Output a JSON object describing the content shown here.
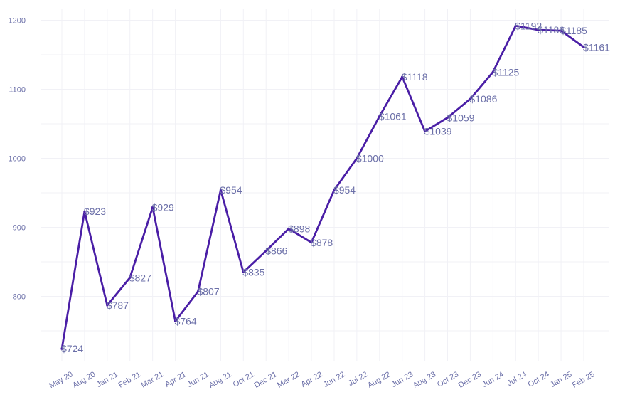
{
  "chart_data": {
    "type": "line",
    "title": "",
    "xlabel": "",
    "ylabel": "",
    "categories": [
      "May 20",
      "Aug 20",
      "Jan 21",
      "Feb 21",
      "Mar 21",
      "Apr 21",
      "Jun 21",
      "Aug 21",
      "Oct 21",
      "Dec 21",
      "Mar 22",
      "Apr 22",
      "Jun 22",
      "Jul 22",
      "Aug 22",
      "Jun 23",
      "Aug 23",
      "Oct 23",
      "Dec 23",
      "Jun 24",
      "Jul 24",
      "Oct 24",
      "Jan 25",
      "Feb 25"
    ],
    "values": [
      724,
      923,
      787,
      827,
      929,
      764,
      807,
      954,
      835,
      866,
      898,
      878,
      954,
      1000,
      1061,
      1118,
      1039,
      1059,
      1086,
      1125,
      1192,
      1186,
      1185,
      1161
    ],
    "data_labels": [
      "$724",
      "$923",
      "$787",
      "$827",
      "$929",
      "$764",
      "$807",
      "$954",
      "$835",
      "$866",
      "$898",
      "$878",
      "$954",
      "$1000",
      "$1061",
      "$1118",
      "$1039",
      "$1059",
      "$1086",
      "$1125",
      "$1192",
      "$1186",
      "$1185",
      "$1161"
    ],
    "y_ticks": [
      800,
      900,
      1000,
      1100,
      1200
    ],
    "y_tick_labels": [
      "800",
      "900",
      "1000",
      "1100",
      "1200"
    ],
    "ylim": [
      710,
      1215
    ],
    "grid": true,
    "legend": "none",
    "colors": {
      "line": "#4a1ea6",
      "text": "#6b6fa8",
      "grid": "#f1f1f6"
    }
  }
}
